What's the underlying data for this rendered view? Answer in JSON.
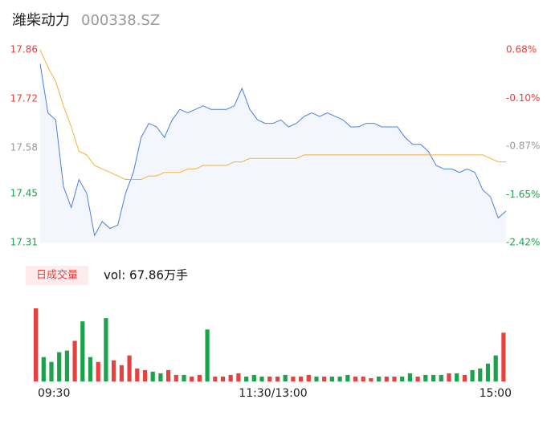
{
  "header": {
    "name": "潍柴动力",
    "code": "000338.SZ"
  },
  "chart_data": [
    {
      "type": "line",
      "categories": [
        "09:30",
        null,
        null,
        null,
        null,
        null,
        null,
        null,
        null,
        null,
        null,
        null,
        null,
        null,
        null,
        null,
        null,
        null,
        null,
        null,
        null,
        null,
        null,
        null,
        null,
        null,
        null,
        null,
        null,
        null,
        "11:30/13:00",
        null,
        null,
        null,
        null,
        null,
        null,
        null,
        null,
        null,
        null,
        null,
        null,
        null,
        null,
        null,
        null,
        null,
        null,
        null,
        null,
        null,
        null,
        null,
        null,
        null,
        null,
        null,
        null,
        null,
        "15:00"
      ],
      "series": [
        {
          "name": "price",
          "color": "#4a7fe0",
          "values": [
            17.82,
            17.68,
            17.66,
            17.47,
            17.41,
            17.49,
            17.45,
            17.33,
            17.37,
            17.35,
            17.36,
            17.45,
            17.51,
            17.61,
            17.65,
            17.64,
            17.61,
            17.66,
            17.69,
            17.68,
            17.69,
            17.7,
            17.69,
            17.69,
            17.69,
            17.7,
            17.75,
            17.69,
            17.66,
            17.65,
            17.65,
            17.66,
            17.64,
            17.65,
            17.67,
            17.68,
            17.67,
            17.68,
            17.67,
            17.66,
            17.64,
            17.64,
            17.65,
            17.65,
            17.64,
            17.64,
            17.64,
            17.61,
            17.59,
            17.59,
            17.57,
            17.53,
            17.52,
            17.52,
            17.51,
            17.52,
            17.51,
            17.46,
            17.44,
            17.38,
            17.4
          ]
        },
        {
          "name": "average",
          "color": "#f2b33b",
          "values": [
            17.86,
            17.81,
            17.77,
            17.7,
            17.64,
            17.57,
            17.56,
            17.53,
            17.52,
            17.51,
            17.5,
            17.49,
            17.49,
            17.49,
            17.5,
            17.5,
            17.51,
            17.51,
            17.51,
            17.52,
            17.52,
            17.53,
            17.53,
            17.53,
            17.53,
            17.54,
            17.54,
            17.55,
            17.55,
            17.55,
            17.55,
            17.55,
            17.55,
            17.55,
            17.56,
            17.56,
            17.56,
            17.56,
            17.56,
            17.56,
            17.56,
            17.56,
            17.56,
            17.56,
            17.56,
            17.56,
            17.56,
            17.56,
            17.56,
            17.56,
            17.56,
            17.56,
            17.56,
            17.56,
            17.56,
            17.56,
            17.56,
            17.56,
            17.55,
            17.54,
            17.54
          ]
        }
      ],
      "ylim": [
        17.31,
        17.86
      ],
      "yticks": [
        17.86,
        17.72,
        17.58,
        17.45,
        17.31
      ],
      "y2lim": [
        -2.42,
        0.68
      ],
      "y2ticks": [
        {
          "value": 0.68,
          "label": "0.68%"
        },
        {
          "value": -0.1,
          "label": "-0.10%"
        },
        {
          "value": -0.87,
          "label": "-0.87%"
        },
        {
          "value": -1.65,
          "label": "-1.65%"
        },
        {
          "value": -2.42,
          "label": "-2.42%"
        }
      ],
      "up_color": "#e8403c",
      "flat_color": "#999999",
      "down_color": "#1aa34a",
      "area_color": "#f3f7fd"
    },
    {
      "type": "bar",
      "button": "日成交量",
      "total": "vol: 67.86万手",
      "values": [
        4.5,
        1.5,
        1.2,
        1.8,
        1.9,
        2.5,
        3.7,
        1.5,
        1.2,
        3.9,
        1.3,
        1.0,
        1.6,
        0.8,
        0.7,
        0.6,
        0.5,
        0.7,
        0.4,
        0.4,
        0.3,
        0.4,
        3.2,
        0.3,
        0.3,
        0.4,
        0.5,
        0.3,
        0.4,
        0.3,
        0.3,
        0.3,
        0.4,
        0.3,
        0.3,
        0.4,
        0.3,
        0.3,
        0.3,
        0.3,
        0.4,
        0.3,
        0.3,
        0.2,
        0.3,
        0.3,
        0.3,
        0.3,
        0.5,
        0.3,
        0.4,
        0.4,
        0.4,
        0.5,
        0.5,
        0.4,
        0.7,
        0.8,
        1.1,
        1.6,
        3.0
      ],
      "ylim": [
        0,
        4.5
      ],
      "up_color": "#e8403c",
      "down_color": "#1aa34a",
      "button_color": "#fdeceb"
    }
  ]
}
